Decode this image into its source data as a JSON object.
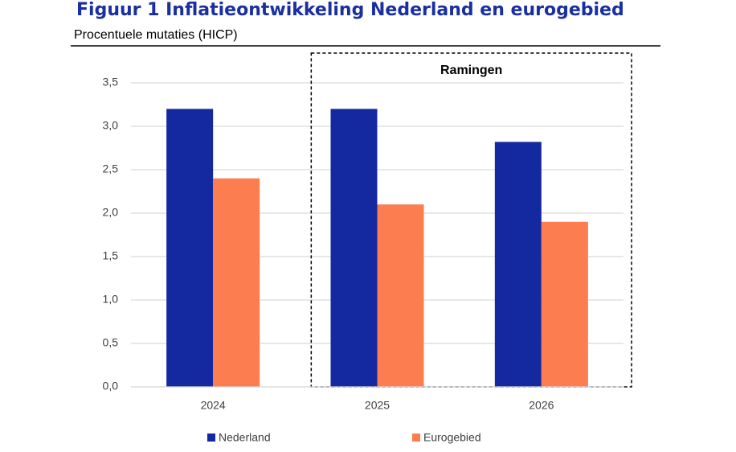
{
  "chart_data": {
    "type": "bar",
    "title": "Figuur 1 Inflatieontwikkeling Nederland en eurogebied",
    "subtitle": "Procentuele mutaties (HICP)",
    "annotation": "Ramingen",
    "categories": [
      "2024",
      "2025",
      "2026"
    ],
    "series": [
      {
        "name": "Nederland",
        "color": "#1428a0",
        "values": [
          3.2,
          3.2,
          2.82
        ]
      },
      {
        "name": "Eurogebied",
        "color": "#fb7d50",
        "values": [
          2.4,
          2.1,
          1.9
        ]
      }
    ],
    "ylim": [
      0,
      3.5
    ],
    "yticks": [
      {
        "value": 0,
        "label": "0,0"
      },
      {
        "value": 0.5,
        "label": "0,5"
      },
      {
        "value": 1,
        "label": "1,0"
      },
      {
        "value": 1.5,
        "label": "1,5"
      },
      {
        "value": 2,
        "label": "2,0"
      },
      {
        "value": 2.5,
        "label": "2,5"
      },
      {
        "value": 3,
        "label": "3,0"
      },
      {
        "value": 3.5,
        "label": "3,5"
      }
    ],
    "grid": true
  }
}
